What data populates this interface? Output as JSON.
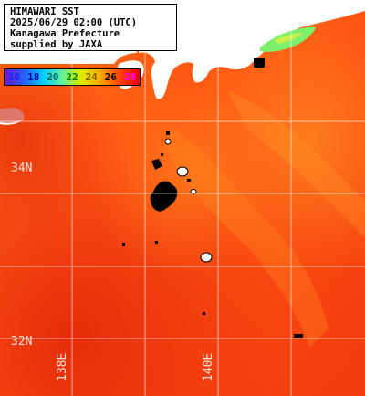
{
  "header": {
    "line1": "HIMAWARI SST",
    "line2": "2025/06/29 02:00 (UTC)",
    "line3": "Kanagawa Prefecture",
    "line4": "supplied by JAXA"
  },
  "legend": {
    "values": [
      "16",
      "18",
      "20",
      "22",
      "24",
      "26",
      "28"
    ],
    "text_colors": [
      "#2020ff",
      "#0000a0",
      "#006060",
      "#008000",
      "#806000",
      "#000000",
      "#ff00ff"
    ]
  },
  "grid": {
    "lat_labels": [
      "34N",
      "32N"
    ],
    "lon_labels": [
      "138E",
      "140E"
    ]
  },
  "colors": {
    "land": "#ffffff",
    "cloud": "#000000",
    "sea_warm": "#ff5a10",
    "sea_hot": "#e82a0a",
    "sea_cool": "#ff9a20",
    "coastal_cool": "#8cf060",
    "grid_line": "#ffffff"
  }
}
